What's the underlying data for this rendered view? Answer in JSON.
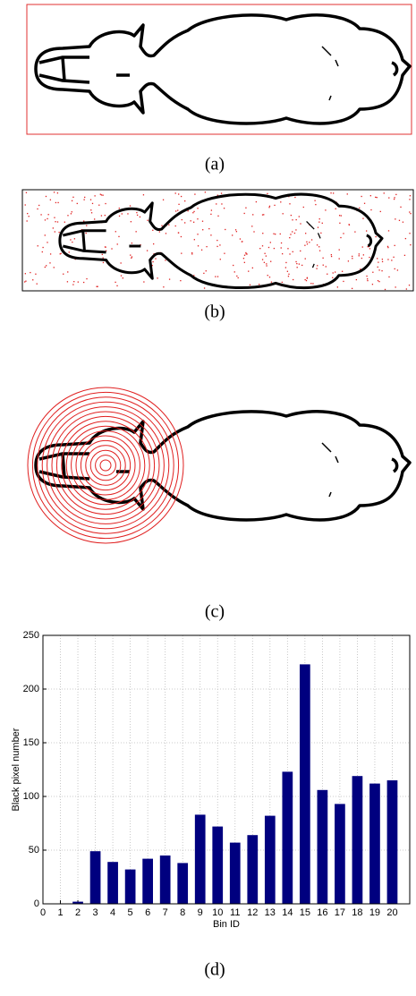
{
  "captions": [
    "(a)",
    "(b)",
    "(c)",
    "(d)"
  ],
  "chart_data": {
    "type": "bar",
    "x": [
      1,
      2,
      3,
      4,
      5,
      6,
      7,
      8,
      9,
      10,
      11,
      12,
      13,
      14,
      15,
      16,
      17,
      18,
      19,
      20
    ],
    "values": [
      0,
      2,
      49,
      39,
      32,
      42,
      45,
      38,
      83,
      72,
      57,
      64,
      82,
      123,
      223,
      106,
      93,
      119,
      112,
      115
    ],
    "color": "#00007f",
    "xlabel": "Bin ID",
    "ylabel": "Black pixel number",
    "xlim": [
      0,
      21
    ],
    "xticks": [
      0,
      1,
      2,
      3,
      4,
      5,
      6,
      7,
      8,
      9,
      10,
      11,
      12,
      13,
      14,
      15,
      16,
      17,
      18,
      19,
      20
    ],
    "ylim": [
      0,
      250
    ],
    "yticks": [
      0,
      50,
      100,
      150,
      200,
      250
    ],
    "grid": true
  }
}
